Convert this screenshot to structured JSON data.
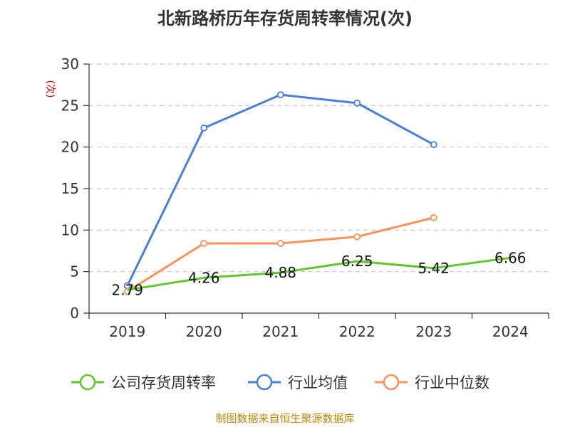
{
  "chart_data": {
    "type": "line",
    "title": "北新路桥历年存货周转率情况(次)",
    "ylabel": "(次)",
    "x": [
      "2019",
      "2020",
      "2021",
      "2022",
      "2023",
      "2024"
    ],
    "ylim": [
      0,
      30
    ],
    "yticks": [
      0,
      5,
      10,
      15,
      20,
      25,
      30
    ],
    "grid": "horizontal-dashed",
    "legend_position": "bottom",
    "series": [
      {
        "name": "公司存货周转率",
        "color": "#5fc62b",
        "values": [
          2.79,
          4.26,
          4.88,
          6.25,
          5.42,
          6.66
        ],
        "labels": [
          "2.79",
          "4.26",
          "4.88",
          "6.25",
          "5.42",
          "6.66"
        ]
      },
      {
        "name": "行业均值",
        "color": "#4a7fd6",
        "values": [
          3.3,
          22.3,
          26.3,
          25.3,
          20.3,
          null
        ]
      },
      {
        "name": "行业中位数",
        "color": "#f5935a",
        "values": [
          2.6,
          8.4,
          8.4,
          9.2,
          11.5,
          null
        ]
      }
    ],
    "source": "制图数据来自恒生聚源数据库"
  }
}
